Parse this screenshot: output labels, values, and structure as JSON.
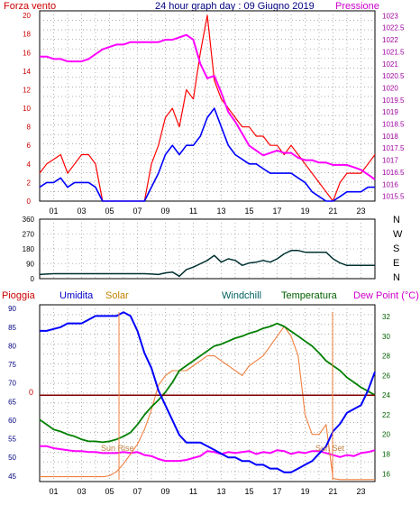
{
  "header": {
    "wind_label": "Forza vento",
    "title": "24 hour graph day : 09 Giugno 2019",
    "pressure_label": "Pressione"
  },
  "middle": {
    "compass": [
      "N",
      "W",
      "S",
      "E",
      "N"
    ]
  },
  "bottom_header": {
    "rain": "Pioggia",
    "humidity": "Umidita",
    "solar": "Solar",
    "windchill": "Windchill",
    "temperature": "Temperatura",
    "dewpoint": "Dew Point (°C)"
  },
  "annotations": {
    "sunrise": "Sun Rise",
    "sunset": "Sun Set",
    "rain_zero": "0"
  },
  "colors": {
    "wind_gust": "#ff0000",
    "wind_avg": "#0000ff",
    "pressure": "#ff00ff",
    "direction": "#003030",
    "humidity": "#0000ff",
    "solar": "#f08040",
    "temperature": "#008000",
    "dewpoint": "#800000",
    "rain": "#cc0000",
    "axis_left": "#cc0000",
    "axis_right": "#a000a0",
    "axis_humidity": "#000080",
    "axis_temp": "#006000",
    "grid": "#808080"
  },
  "chart_data": [
    {
      "type": "line",
      "x_ticks": [
        "01",
        "03",
        "05",
        "07",
        "09",
        "11",
        "13",
        "15",
        "17",
        "19",
        "21",
        "23"
      ],
      "y_ticks_left": [
        "0",
        "2",
        "4",
        "6",
        "8",
        "10",
        "12",
        "14",
        "16",
        "18",
        "20"
      ],
      "y_ticks_right": [
        "1015.5",
        "1016",
        "1016.5",
        "1017",
        "1017.5",
        "1018",
        "1018.5",
        "1019",
        "1019.5",
        "1020",
        "1020.5",
        "1021",
        "1021.5",
        "1022",
        "1022.5",
        "1023"
      ],
      "ylim_left": [
        0,
        20.5
      ],
      "ylim_right": [
        1015.3,
        1023.2
      ],
      "series": [
        {
          "name": "Forza vento",
          "x": [
            0,
            0.5,
            1,
            1.5,
            2,
            2.5,
            3,
            3.5,
            4,
            4.5,
            5,
            5.5,
            6,
            6.5,
            7,
            7.5,
            8,
            8.5,
            9,
            9.5,
            10,
            10.5,
            11,
            11.5,
            12,
            12.5,
            13,
            13.5,
            14,
            14.5,
            15,
            15.5,
            16,
            16.5,
            17,
            17.5,
            18,
            18.5,
            19,
            19.5,
            20,
            20.5,
            21,
            21.5,
            22,
            22.5,
            23,
            23.5,
            24
          ],
          "values": [
            3,
            4,
            4.5,
            5,
            3,
            4,
            5,
            5,
            4,
            0,
            0,
            0,
            0,
            0,
            0,
            0,
            4,
            6,
            9,
            10,
            8,
            12,
            11,
            16,
            20,
            13,
            11,
            10,
            9,
            8,
            8,
            7,
            7,
            6,
            6,
            5,
            6,
            5,
            4,
            3,
            2,
            1,
            0,
            2,
            3,
            3,
            3,
            4,
            5
          ]
        },
        {
          "name": "Forza vento media",
          "x": [
            0,
            0.5,
            1,
            1.5,
            2,
            2.5,
            3,
            3.5,
            4,
            4.5,
            5,
            5.5,
            6,
            6.5,
            7,
            7.5,
            8,
            8.5,
            9,
            9.5,
            10,
            10.5,
            11,
            11.5,
            12,
            12.5,
            13,
            13.5,
            14,
            14.5,
            15,
            15.5,
            16,
            16.5,
            17,
            17.5,
            18,
            18.5,
            19,
            19.5,
            20,
            20.5,
            21,
            21.5,
            22,
            22.5,
            23,
            23.5,
            24
          ],
          "values": [
            1.5,
            2,
            2,
            2.5,
            1.5,
            2,
            2,
            2,
            1.5,
            0,
            0,
            0,
            0,
            0,
            0,
            0,
            1.5,
            3,
            5,
            6,
            5,
            6,
            6,
            7,
            9,
            10,
            8,
            6,
            5,
            4.5,
            4,
            4,
            3.5,
            3,
            3,
            3,
            3,
            2.5,
            2,
            1,
            0.5,
            0,
            0,
            0.5,
            1,
            1,
            1,
            1.5,
            1.5
          ]
        },
        {
          "name": "Pressione",
          "x": [
            0,
            0.5,
            1,
            1.5,
            2,
            2.5,
            3,
            3.5,
            4,
            4.5,
            5,
            5.5,
            6,
            6.5,
            7,
            7.5,
            8,
            8.5,
            9,
            9.5,
            10,
            10.5,
            11,
            11.5,
            12,
            12.5,
            13,
            13.5,
            14,
            14.5,
            15,
            15.5,
            16,
            16.5,
            17,
            17.5,
            18,
            18.5,
            19,
            19.5,
            20,
            20.5,
            21,
            21.5,
            22,
            22.5,
            23,
            23.5,
            24
          ],
          "values": [
            1021.3,
            1021.3,
            1021.2,
            1021.2,
            1021.1,
            1021.1,
            1021.1,
            1021.2,
            1021.4,
            1021.6,
            1021.7,
            1021.8,
            1021.8,
            1021.9,
            1021.9,
            1021.9,
            1021.9,
            1021.9,
            1022.0,
            1022.0,
            1022.1,
            1022.2,
            1022.0,
            1021.0,
            1020.4,
            1020.5,
            1019.8,
            1019.0,
            1018.6,
            1018.1,
            1017.6,
            1017.4,
            1017.2,
            1017.3,
            1017.4,
            1017.3,
            1017.3,
            1017.1,
            1017.0,
            1017.0,
            1016.9,
            1016.9,
            1016.8,
            1016.8,
            1016.8,
            1016.7,
            1016.6,
            1016.4,
            1016.2
          ]
        }
      ]
    },
    {
      "type": "line",
      "x_ticks": [
        "01",
        "03",
        "05",
        "07",
        "09",
        "11",
        "13",
        "15",
        "17",
        "19",
        "21",
        "23"
      ],
      "y_ticks": [
        "0",
        "90",
        "180",
        "270",
        "360"
      ],
      "ylim": [
        0,
        360
      ],
      "series": [
        {
          "name": "Direzione",
          "x": [
            0,
            0.5,
            1,
            1.5,
            2,
            2.5,
            3,
            3.5,
            4,
            4.5,
            5,
            5.5,
            6,
            6.5,
            7,
            7.5,
            8,
            8.5,
            9,
            9.5,
            10,
            10.5,
            11,
            11.5,
            12,
            12.5,
            13,
            13.5,
            14,
            14.5,
            15,
            15.5,
            16,
            16.5,
            17,
            17.5,
            18,
            18.5,
            19,
            19.5,
            20,
            20.5,
            21,
            21.5,
            22,
            22.5,
            23,
            23.5,
            24
          ],
          "values": [
            25,
            28,
            30,
            30,
            30,
            30,
            30,
            30,
            30,
            30,
            30,
            30,
            30,
            30,
            30,
            30,
            28,
            25,
            35,
            40,
            15,
            55,
            70,
            90,
            110,
            140,
            100,
            120,
            110,
            80,
            95,
            100,
            110,
            100,
            120,
            150,
            170,
            170,
            160,
            160,
            160,
            160,
            120,
            95,
            80,
            80,
            80,
            80,
            80
          ]
        }
      ]
    },
    {
      "type": "line",
      "x_ticks": [
        "01",
        "03",
        "05",
        "07",
        "09",
        "11",
        "13",
        "15",
        "17",
        "19",
        "21",
        "23"
      ],
      "y_ticks_left": [
        "45",
        "50",
        "55",
        "60",
        "65",
        "70",
        "75",
        "80",
        "85",
        "90"
      ],
      "y_ticks_right": [
        "16",
        "18",
        "20",
        "22",
        "24",
        "26",
        "28",
        "30",
        "32"
      ],
      "ylim_left": [
        43.5,
        91
      ],
      "ylim_right": [
        15.2,
        33.2
      ],
      "series": [
        {
          "name": "Umidita",
          "x": [
            0,
            0.5,
            1,
            1.5,
            2,
            2.5,
            3,
            3.5,
            4,
            4.5,
            5,
            5.5,
            6,
            6.5,
            7,
            7.5,
            8,
            8.5,
            9,
            9.5,
            10,
            10.5,
            11,
            11.5,
            12,
            12.5,
            13,
            13.5,
            14,
            14.5,
            15,
            15.5,
            16,
            16.5,
            17,
            17.5,
            18,
            18.5,
            19,
            19.5,
            20,
            20.5,
            21,
            21.5,
            22,
            22.5,
            23,
            23.5,
            24
          ],
          "values": [
            84,
            84,
            84.5,
            85,
            86,
            86,
            86,
            87,
            88,
            88,
            88,
            88,
            89,
            88,
            84,
            78,
            74,
            68,
            64,
            60,
            56,
            54,
            54,
            54,
            53,
            52,
            51,
            50,
            50,
            49,
            49,
            48,
            48,
            47,
            47,
            46,
            46,
            47,
            48,
            49,
            51,
            53,
            57,
            59,
            62,
            63,
            64,
            68,
            73
          ]
        },
        {
          "name": "Solar",
          "x": [
            0,
            4.6,
            5,
            5.5,
            6,
            6.5,
            7,
            7.5,
            8,
            8.5,
            9,
            9.5,
            10,
            10.5,
            11,
            11.5,
            12,
            12.5,
            13,
            13.5,
            14,
            14.5,
            15,
            15.5,
            16,
            16.5,
            17,
            17.5,
            18,
            18.5,
            19,
            19.5,
            20,
            20.5,
            21,
            21.5,
            22,
            24
          ],
          "values": [
            15.7,
            15.7,
            15.8,
            16.2,
            17,
            18,
            19,
            20.5,
            22.5,
            25,
            26,
            26.5,
            26.5,
            26.5,
            27,
            27.5,
            28,
            28,
            27.5,
            27,
            26.5,
            26,
            27,
            27.5,
            28,
            29,
            30,
            31,
            30,
            28,
            22,
            20,
            20,
            21,
            15.5,
            15.4,
            15.4,
            15.4
          ]
        },
        {
          "name": "Temperatura",
          "x": [
            0,
            0.5,
            1,
            1.5,
            2,
            2.5,
            3,
            3.5,
            4,
            4.5,
            5,
            5.5,
            6,
            6.5,
            7,
            7.5,
            8,
            8.5,
            9,
            9.5,
            10,
            10.5,
            11,
            11.5,
            12,
            12.5,
            13,
            13.5,
            14,
            14.5,
            15,
            15.5,
            16,
            16.5,
            17,
            17.5,
            18,
            18.5,
            19,
            19.5,
            20,
            20.5,
            21,
            21.5,
            22,
            22.5,
            23,
            23.5,
            24
          ],
          "values": [
            21.5,
            21,
            20.5,
            20.3,
            20,
            19.8,
            19.5,
            19.3,
            19.3,
            19.2,
            19.3,
            19.5,
            19.8,
            20.2,
            21,
            22,
            22.8,
            23.5,
            24.3,
            25.3,
            26.5,
            27,
            27.5,
            28,
            28.5,
            29,
            29.2,
            29.5,
            29.8,
            30,
            30.3,
            30.5,
            30.8,
            31,
            31.3,
            31,
            30.5,
            30,
            29.5,
            29,
            28.3,
            27.5,
            27,
            26.5,
            25.8,
            25.3,
            24.8,
            24.4,
            24
          ]
        },
        {
          "name": "Dew Point (°C)",
          "x": [
            0,
            24
          ],
          "values": [
            24,
            24
          ]
        },
        {
          "name": "Pioggia",
          "x": [
            0,
            24
          ],
          "values": [
            24,
            24
          ]
        },
        {
          "name": "Windchill",
          "x": [
            0,
            0.5,
            1,
            1.5,
            2,
            2.5,
            3,
            3.5,
            4,
            4.5,
            5,
            5.5,
            6,
            6.5,
            7,
            7.5,
            8,
            8.5,
            9,
            9.5,
            10,
            10.5,
            11,
            11.5,
            12,
            12.5,
            13,
            13.5,
            14,
            14.5,
            15,
            15.5,
            16,
            16.5,
            17,
            17.5,
            18,
            18.5,
            19,
            19.5,
            20,
            20.5,
            21,
            21.5,
            22,
            22.5,
            23,
            23.5,
            24
          ],
          "values": [
            18.8,
            18.8,
            18.6,
            18.5,
            18.4,
            18.3,
            18.3,
            18.2,
            18.2,
            18.1,
            18.1,
            18.1,
            18.2,
            18.1,
            18.2,
            17.9,
            17.8,
            17.5,
            17.3,
            17.3,
            17.3,
            17.4,
            17.6,
            17.8,
            18.3,
            18.2,
            18.0,
            18.2,
            18.1,
            18.2,
            18.3,
            18.0,
            18.2,
            18.1,
            18.4,
            18.3,
            18.0,
            18.2,
            18.1,
            18.3,
            18.3,
            18.1,
            17.9,
            17.7,
            17.9,
            17.8,
            18.1,
            18.2,
            18.4
          ]
        }
      ]
    }
  ]
}
